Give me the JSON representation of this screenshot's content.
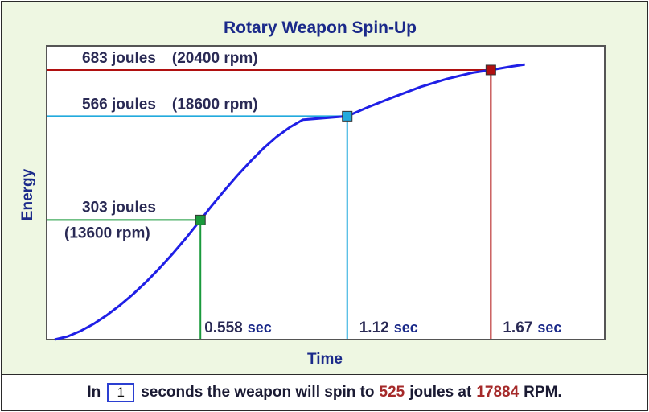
{
  "chart_data": {
    "type": "line",
    "title": "Rotary Weapon Spin-Up",
    "xlabel": "Time",
    "ylabel": "Energy",
    "curve": {
      "color": "#1f1fe6",
      "x": [
        0,
        0.05,
        0.1,
        0.15,
        0.2,
        0.25,
        0.3,
        0.35,
        0.4,
        0.45,
        0.5,
        0.558,
        0.6,
        0.65,
        0.7,
        0.75,
        0.8,
        0.85,
        0.9,
        0.95,
        1.0,
        1.05,
        1.12,
        1.2,
        1.3,
        1.4,
        1.5,
        1.6,
        1.67,
        1.75,
        1.8
      ],
      "y": [
        0,
        8,
        22,
        40,
        62,
        87,
        115,
        146,
        180,
        216,
        255,
        303,
        338,
        378,
        416,
        452,
        485,
        514,
        538,
        557,
        525,
        545,
        566,
        589,
        615,
        640,
        660,
        676,
        683,
        692,
        697
      ]
    },
    "markers": [
      {
        "time": 0.558,
        "energy": 303,
        "color": "#1a9a3c",
        "energy_label": "303 joules",
        "rpm_label": "(13600 rpm)",
        "time_value": "0.558",
        "time_unit": "sec"
      },
      {
        "time": 1.12,
        "energy": 566,
        "color": "#22aadd",
        "energy_label": "566 joules",
        "rpm_label": "(18600 rpm)",
        "time_value": "1.12",
        "time_unit": "sec"
      },
      {
        "time": 1.67,
        "energy": 683,
        "color": "#b01010",
        "energy_label": "683 joules",
        "rpm_label": "(20400 rpm)",
        "time_value": "1.67",
        "time_unit": "sec"
      }
    ],
    "xlim": [
      0,
      2.1
    ],
    "ylim": [
      0,
      740
    ],
    "grid": false,
    "colors": {
      "title": "#1b2a8a",
      "axis_label": "#1b2a8a",
      "label_text": "#2a2a55",
      "unit_text": "#1b2a8a",
      "panel": "#eef7e2"
    }
  },
  "footer": {
    "prefix": "In",
    "seconds_value": "1",
    "middle": "seconds the weapon will spin to",
    "joules_value": "525",
    "joules_unit": "joules at",
    "rpm_value": "17884",
    "rpm_unit": "RPM."
  }
}
